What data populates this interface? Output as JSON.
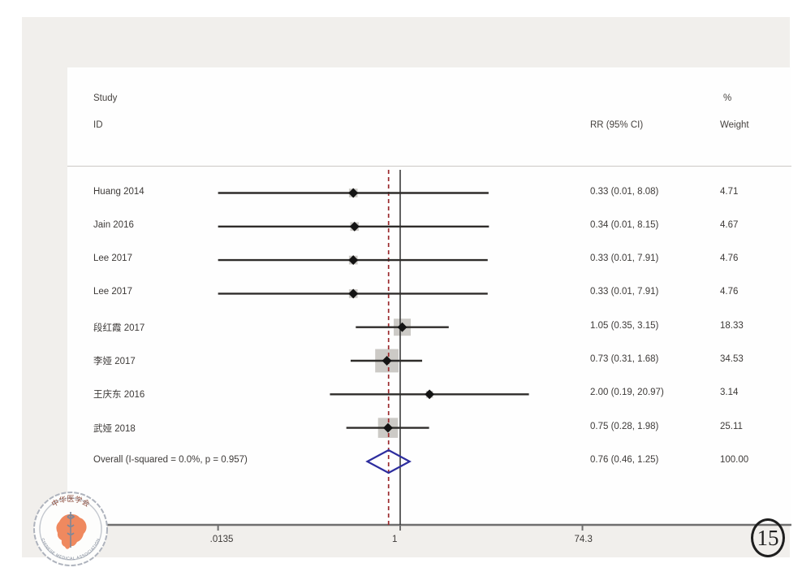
{
  "figure_number": "15",
  "colors": {
    "page_bg": "#f1efec",
    "chart_bg": "#fefefe",
    "text": "#3d3a38",
    "ci_line": "#2e2c2a",
    "weight_square": "#c7c4c0",
    "point_marker": "#141414",
    "null_line": "#3a3a3a",
    "reference_line": "#9c2a2d",
    "diamond": "#2d2d9e",
    "axis": "#6f6f6f",
    "logo_orange": "#ee8356"
  },
  "logo": {
    "top_text": "中华医学会",
    "bottom_text": "CHINESE MEDICAL ASSOCIATION"
  },
  "chart_data": {
    "type": "forest",
    "effect_measure": "RR",
    "scale": "log",
    "columns": {
      "study_line1": "Study",
      "study_line2": "ID",
      "rr_header": "RR (95% CI)",
      "weight_line1": "%",
      "weight_line2": "Weight"
    },
    "axis": {
      "min": 0.0135,
      "ticks": [
        {
          "label": ".0135",
          "value": 0.0135
        },
        {
          "label": "1",
          "value": 1
        },
        {
          "label": "74.3",
          "value": 74.3
        }
      ]
    },
    "null_line_value": 1,
    "reference_line_value": 0.76,
    "studies": [
      {
        "id": "Huang 2014",
        "rr": 0.33,
        "ci_low": 0.01,
        "ci_high": 8.08,
        "rr_label": "0.33 (0.01, 8.08)",
        "weight": 4.71,
        "weight_label": "4.71"
      },
      {
        "id": "Jain 2016",
        "rr": 0.34,
        "ci_low": 0.01,
        "ci_high": 8.15,
        "rr_label": "0.34 (0.01, 8.15)",
        "weight": 4.67,
        "weight_label": "4.67"
      },
      {
        "id": "Lee 2017",
        "rr": 0.33,
        "ci_low": 0.01,
        "ci_high": 7.91,
        "rr_label": "0.33 (0.01, 7.91)",
        "weight": 4.76,
        "weight_label": "4.76"
      },
      {
        "id": "Lee 2017",
        "rr": 0.33,
        "ci_low": 0.01,
        "ci_high": 7.91,
        "rr_label": "0.33 (0.01, 7.91)",
        "weight": 4.76,
        "weight_label": "4.76"
      },
      {
        "id": "段红霞 2017",
        "rr": 1.05,
        "ci_low": 0.35,
        "ci_high": 3.15,
        "rr_label": "1.05 (0.35, 3.15)",
        "weight": 18.33,
        "weight_label": "18.33"
      },
      {
        "id": "李娅 2017",
        "rr": 0.73,
        "ci_low": 0.31,
        "ci_high": 1.68,
        "rr_label": "0.73 (0.31, 1.68)",
        "weight": 34.53,
        "weight_label": "34.53"
      },
      {
        "id": "王庆东 2016",
        "rr": 2.0,
        "ci_low": 0.19,
        "ci_high": 20.97,
        "rr_label": "2.00 (0.19, 20.97)",
        "weight": 3.14,
        "weight_label": "3.14"
      },
      {
        "id": "武娅 2018",
        "rr": 0.75,
        "ci_low": 0.28,
        "ci_high": 1.98,
        "rr_label": "0.75 (0.28, 1.98)",
        "weight": 25.11,
        "weight_label": "25.11"
      }
    ],
    "overall": {
      "id": "Overall  (I-squared = 0.0%, p = 0.957)",
      "rr": 0.76,
      "ci_low": 0.46,
      "ci_high": 1.25,
      "rr_label": "0.76 (0.46, 1.25)",
      "weight_label": "100.00"
    }
  }
}
